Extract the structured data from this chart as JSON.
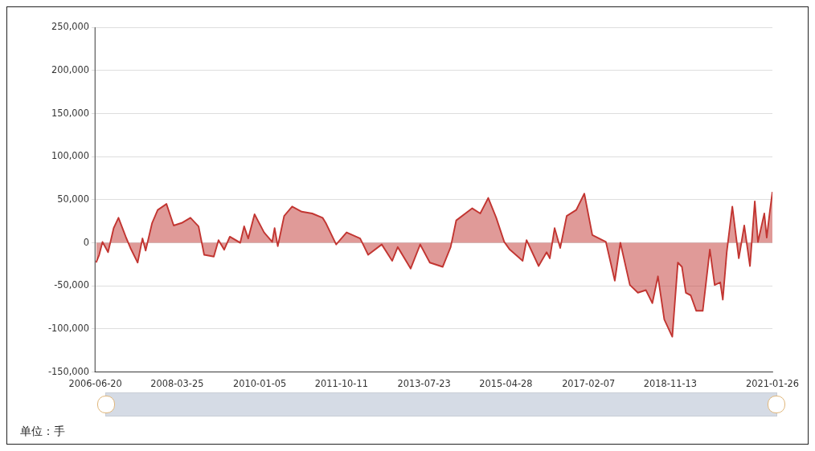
{
  "chart_data": {
    "type": "area",
    "x": [
      "2006-06-26",
      "2006-07-20",
      "2006-08-15",
      "2006-09-28",
      "2006-11-11",
      "2006-12-19",
      "2007-02-14",
      "2007-03-23",
      "2007-05-19",
      "2007-06-26",
      "2007-07-21",
      "2007-09-10",
      "2007-10-24",
      "2008-01-01",
      "2008-02-27",
      "2008-04-30",
      "2008-07-08",
      "2008-09-10",
      "2008-10-24",
      "2009-01-08",
      "2009-02-14",
      "2009-03-31",
      "2009-05-14",
      "2009-08-04",
      "2009-09-04",
      "2009-10-06",
      "2009-11-25",
      "2010-02-08",
      "2010-04-13",
      "2010-05-02",
      "2010-05-27",
      "2010-07-16",
      "2010-09-17",
      "2010-12-02",
      "2011-02-22",
      "2011-05-15",
      "2011-06-09",
      "2011-08-30",
      "2011-11-20",
      "2012-03-06",
      "2012-05-08",
      "2012-08-23",
      "2012-11-13",
      "2012-12-27",
      "2013-04-08",
      "2013-06-22",
      "2013-09-06",
      "2013-12-16",
      "2014-02-17",
      "2014-04-02",
      "2014-08-06",
      "2014-10-08",
      "2014-12-10",
      "2015-02-11",
      "2015-04-15",
      "2015-05-29",
      "2015-09-07",
      "2015-10-08",
      "2016-01-11",
      "2016-03-14",
      "2016-04-08",
      "2016-05-16",
      "2016-06-29",
      "2016-08-19",
      "2016-11-02",
      "2017-01-05",
      "2017-03-09",
      "2017-06-24",
      "2017-09-02",
      "2017-10-16",
      "2017-12-30",
      "2018-03-03",
      "2018-05-05",
      "2018-06-25",
      "2018-08-08",
      "2018-09-27",
      "2018-11-29",
      "2019-01-12",
      "2019-02-13",
      "2019-03-16",
      "2019-04-23",
      "2019-06-06",
      "2019-07-27",
      "2019-09-21",
      "2019-10-29",
      "2019-12-12",
      "2020-01-01",
      "2020-02-01",
      "2020-03-16",
      "2020-05-06",
      "2020-06-18",
      "2020-08-02",
      "2020-09-09",
      "2020-10-04",
      "2020-11-23",
      "2020-12-12",
      "2021-01-07",
      "2021-01-26"
    ],
    "series": [
      {
        "color": "#c23531",
        "values": [
          -23000,
          -14000,
          1000,
          -11000,
          17000,
          29000,
          7000,
          -6000,
          -23000,
          5000,
          -9000,
          23000,
          38000,
          45000,
          20000,
          23000,
          29000,
          19000,
          -14000,
          -16000,
          3000,
          -8000,
          7000,
          0,
          19000,
          5000,
          33000,
          12000,
          1000,
          17000,
          -4000,
          31000,
          42000,
          36000,
          34000,
          29000,
          23000,
          -2000,
          12000,
          5000,
          -14000,
          -2000,
          -21000,
          -5000,
          -30000,
          -2000,
          -23000,
          -28000,
          -5000,
          26000,
          40000,
          34000,
          52000,
          29000,
          1000,
          -8000,
          -21000,
          3000,
          -27000,
          -11000,
          -18000,
          17000,
          -6000,
          31000,
          38000,
          57000,
          9000,
          1000,
          -44000,
          0,
          -49000,
          -58000,
          -55000,
          -70000,
          -39000,
          -89000,
          -109000,
          -23000,
          -28000,
          -58000,
          -61000,
          -79000,
          -79000,
          -8000,
          -49000,
          -46000,
          -66000,
          -11000,
          42000,
          -18000,
          20000,
          -27000,
          48000,
          1000,
          34000,
          6000,
          38000,
          59000
        ]
      }
    ],
    "xlim": [
      "2006-06-20",
      "2021-01-26"
    ],
    "xticks": [
      "2006-06-20",
      "2008-03-25",
      "2010-01-05",
      "2011-10-11",
      "2013-07-23",
      "2015-04-28",
      "2017-02-07",
      "2018-11-13",
      "2021-01-26"
    ],
    "ylim": [
      -150000,
      250000
    ],
    "yticks": [
      {
        "value": -150000,
        "label": "-150,000"
      },
      {
        "value": -100000,
        "label": "-100,000"
      },
      {
        "value": -50000,
        "label": "-50,000"
      },
      0,
      {
        "value": 50000,
        "label": "50,000"
      },
      {
        "value": 100000,
        "label": "100,000"
      },
      {
        "value": 150000,
        "label": "150,000"
      },
      {
        "value": 200000,
        "label": "200,000"
      },
      {
        "value": 250000,
        "label": "250,000"
      }
    ],
    "grid": "y",
    "legend": false,
    "marker": "none",
    "line_style": "solid",
    "annotations": [
      "单位：手"
    ]
  }
}
